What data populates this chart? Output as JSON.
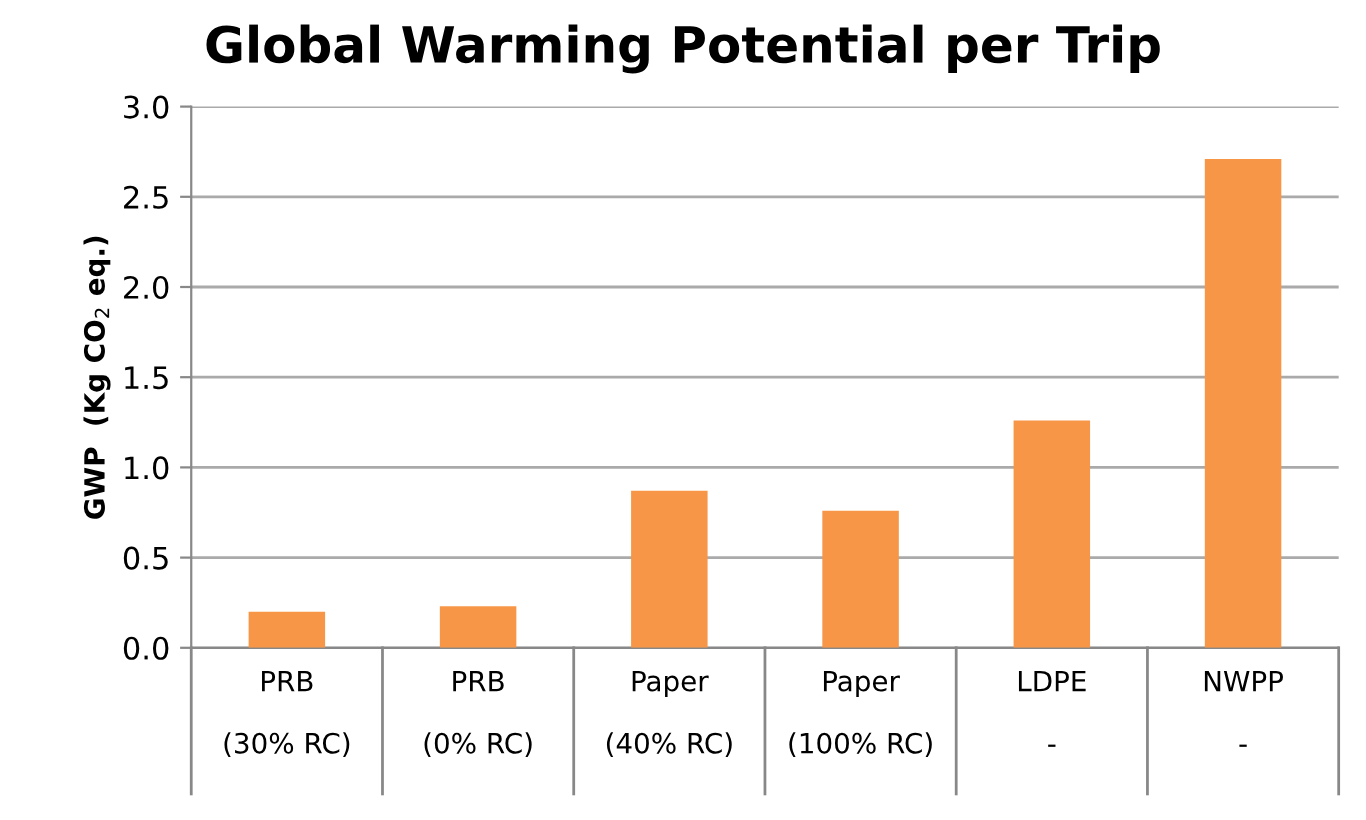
{
  "chart_data": {
    "type": "bar",
    "title": "Global Warming Potential per Trip",
    "ylabel": "GWP  (Kg CO$_{2}$ eq.)",
    "categories": [
      "PRB\n\n(30% RC)",
      "PRB\n\n(0% RC)",
      "Paper\n\n(40% RC)",
      "Paper\n\n(100% RC)",
      "LDPE\n\n-",
      "NWPP\n\n-"
    ],
    "values": [
      0.2,
      0.23,
      0.87,
      0.76,
      1.26,
      2.71
    ],
    "color": "#f79646",
    "ylim": [
      0,
      3.0
    ],
    "yticks": [
      {
        "value": 0,
        "label": "0.0"
      },
      {
        "value": 0.5,
        "label": "0.5"
      },
      {
        "value": 1.0,
        "label": "1.0"
      },
      {
        "value": 1.5,
        "label": "1.5"
      },
      {
        "value": 2.0,
        "label": "2.0"
      },
      {
        "value": 2.5,
        "label": "2.5"
      },
      {
        "value": 3.0,
        "label": "3.0"
      }
    ],
    "grid": "y",
    "legend": false
  }
}
